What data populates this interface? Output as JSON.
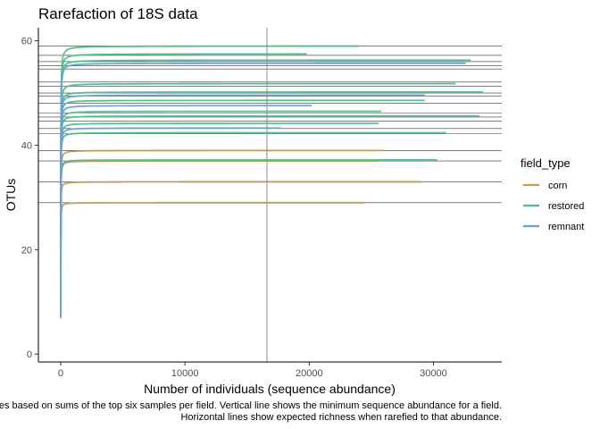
{
  "chart_data": {
    "type": "line",
    "title": "Rarefaction of 18S data",
    "xlabel": "Number of individuals (sequence abundance)",
    "ylabel": "OTUs",
    "xlim": [
      -1800,
      35500
    ],
    "ylim": [
      -1.5,
      62.5
    ],
    "x_ticks": [
      0,
      10000,
      20000,
      30000
    ],
    "x_tick_labels": [
      "0",
      "10000",
      "20000",
      "30000"
    ],
    "y_ticks": [
      0,
      20,
      40,
      60
    ],
    "y_tick_labels": [
      "0",
      "20",
      "40",
      "60"
    ],
    "grid": false,
    "legend_position": "right",
    "legend_title": "field_type",
    "legend": [
      {
        "name": "corn",
        "color": "#c49a5a"
      },
      {
        "name": "restored",
        "color": "#4dbf8c"
      },
      {
        "name": "remnant",
        "color": "#6a9fdc"
      }
    ],
    "vertical_line": {
      "x": 16600,
      "color": "#8c8c8c"
    },
    "horizontal_lines": [
      59,
      57.2,
      56,
      55.2,
      54.6,
      52.1,
      51.3,
      50,
      49.4,
      48,
      46.2,
      45.4,
      44.6,
      43.2,
      42.2,
      39,
      37,
      33,
      29
    ],
    "series": [
      {
        "group": "corn",
        "asymptote": 29,
        "max_x": 24500
      },
      {
        "group": "corn",
        "asymptote": 33,
        "max_x": 29000
      },
      {
        "group": "corn",
        "asymptote": 37,
        "max_x": 25700
      },
      {
        "group": "corn",
        "asymptote": 39,
        "max_x": 26000
      },
      {
        "group": "restored",
        "asymptote": 59,
        "max_x": 24000
      },
      {
        "group": "restored",
        "asymptote": 57.5,
        "max_x": 19800
      },
      {
        "group": "restored",
        "asymptote": 56.3,
        "max_x": 33000
      },
      {
        "group": "restored",
        "asymptote": 51.8,
        "max_x": 31800
      },
      {
        "group": "restored",
        "asymptote": 50.2,
        "max_x": 34000
      },
      {
        "group": "restored",
        "asymptote": 48.6,
        "max_x": 29300
      },
      {
        "group": "restored",
        "asymptote": 46.5,
        "max_x": 25800
      },
      {
        "group": "restored",
        "asymptote": 45.6,
        "max_x": 33700
      },
      {
        "group": "restored",
        "asymptote": 44.2,
        "max_x": 25600
      },
      {
        "group": "restored",
        "asymptote": 42.4,
        "max_x": 31000
      },
      {
        "group": "restored",
        "asymptote": 37.2,
        "max_x": 30300
      },
      {
        "group": "remnant",
        "asymptote": 55.7,
        "max_x": 32600
      },
      {
        "group": "remnant",
        "asymptote": 49.6,
        "max_x": 29300
      },
      {
        "group": "remnant",
        "asymptote": 47.6,
        "max_x": 20200
      },
      {
        "group": "remnant",
        "asymptote": 43.3,
        "max_x": 17700
      }
    ]
  },
  "caption": {
    "line1": "Curves based on sums of the top six samples per field. Vertical line shows the minimum sequence abundance for a field.",
    "line2": "Horizontal lines show expected richness when rarefied to that abundance."
  }
}
